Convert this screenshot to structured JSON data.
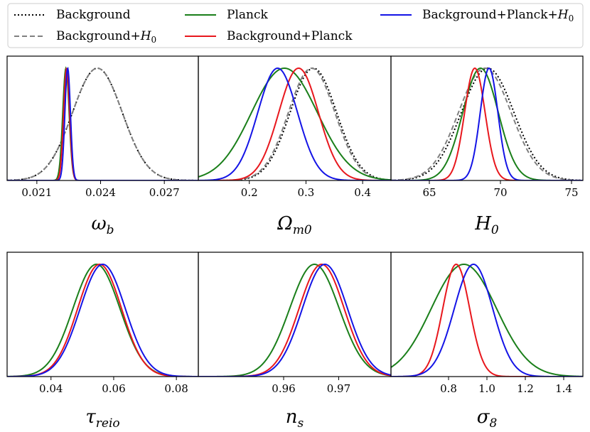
{
  "chart_data": {
    "type": "line",
    "description_kind": "1D marginalized posterior distributions",
    "legend": [
      {
        "label_main": "Background",
        "label_sub": "",
        "color": "#000000",
        "style": "dotted"
      },
      {
        "label_main": "Background+",
        "label_sub": "H",
        "label_sub_index": "0",
        "color": "#808080",
        "style": "dashed"
      },
      {
        "label_main": "Planck",
        "label_sub": "",
        "color": "#1a7f1a",
        "style": "solid"
      },
      {
        "label_main": "Background+Planck",
        "label_sub": "",
        "color": "#e8171d",
        "style": "solid"
      },
      {
        "label_main": "Background+Planck+",
        "label_sub": "H",
        "label_sub_index": "0",
        "color": "#1414e6",
        "style": "solid"
      }
    ],
    "panels": [
      {
        "name": "omega_b",
        "symbol": "ω",
        "subscript": "b",
        "xlim": [
          0.0196,
          0.0286
        ],
        "ticks": [
          {
            "v": 0.021,
            "label": "0.021"
          },
          {
            "v": 0.024,
            "label": "0.024"
          },
          {
            "v": 0.027,
            "label": "0.027"
          }
        ],
        "series": [
          {
            "name": "Background",
            "mean": 0.02385,
            "sigma": 0.00117
          },
          {
            "name": "Background+H0",
            "mean": 0.02385,
            "sigma": 0.00117
          },
          {
            "name": "Planck",
            "mean": 0.02237,
            "sigma": 0.00015
          },
          {
            "name": "Background+Planck",
            "mean": 0.0224,
            "sigma": 0.00014
          },
          {
            "name": "Background+Planck+H0",
            "mean": 0.02245,
            "sigma": 0.00013
          }
        ]
      },
      {
        "name": "Omega_m0",
        "symbol": "Ω",
        "subscript": "m0",
        "xlim": [
          0.11,
          0.45
        ],
        "ticks": [
          {
            "v": 0.2,
            "label": "0.2"
          },
          {
            "v": 0.3,
            "label": "0.3"
          },
          {
            "v": 0.4,
            "label": "0.4"
          }
        ],
        "series": [
          {
            "name": "Background",
            "mean": 0.313,
            "sigma": 0.041
          },
          {
            "name": "Background+H0",
            "mean": 0.31,
            "sigma": 0.041
          },
          {
            "name": "Planck",
            "mean": 0.262,
            "sigma": 0.058
          },
          {
            "name": "Background+Planck",
            "mean": 0.287,
            "sigma": 0.035
          },
          {
            "name": "Background+Planck+H0",
            "mean": 0.25,
            "sigma": 0.035
          }
        ]
      },
      {
        "name": "H0",
        "symbol": "H",
        "subscript": "0",
        "xlim": [
          62.3,
          75.8
        ],
        "ticks": [
          {
            "v": 65,
            "label": "65"
          },
          {
            "v": 70,
            "label": "70"
          },
          {
            "v": 75,
            "label": "75"
          }
        ],
        "series": [
          {
            "name": "Background",
            "mean": 69.1,
            "sigma": 1.85
          },
          {
            "name": "Background+H0",
            "mean": 68.9,
            "sigma": 1.85
          },
          {
            "name": "Planck",
            "mean": 68.6,
            "sigma": 1.25
          },
          {
            "name": "Background+Planck",
            "mean": 68.2,
            "sigma": 0.72
          },
          {
            "name": "Background+Planck+H0",
            "mean": 69.2,
            "sigma": 0.62
          }
        ]
      },
      {
        "name": "tau_reio",
        "symbol": "τ",
        "subscript": "reio",
        "xlim": [
          0.026,
          0.087
        ],
        "ticks": [
          {
            "v": 0.04,
            "label": "0.04"
          },
          {
            "v": 0.06,
            "label": "0.06"
          },
          {
            "v": 0.08,
            "label": "0.08"
          }
        ],
        "series": [
          {
            "name": "Planck",
            "mean": 0.0545,
            "sigma": 0.0075
          },
          {
            "name": "Background+Planck",
            "mean": 0.0555,
            "sigma": 0.007
          },
          {
            "name": "Background+Planck+H0",
            "mean": 0.0565,
            "sigma": 0.0072
          }
        ]
      },
      {
        "name": "n_s",
        "symbol": "n",
        "subscript": "s",
        "xlim": [
          0.9445,
          0.9795
        ],
        "ticks": [
          {
            "v": 0.96,
            "label": "0.96"
          },
          {
            "v": 0.97,
            "label": "0.97"
          }
        ],
        "series": [
          {
            "name": "Planck",
            "mean": 0.9656,
            "sigma": 0.0045
          },
          {
            "name": "Background+Planck",
            "mean": 0.9669,
            "sigma": 0.0041
          },
          {
            "name": "Background+Planck+H0",
            "mean": 0.9675,
            "sigma": 0.0041
          }
        ]
      },
      {
        "name": "sigma_8",
        "symbol": "σ",
        "subscript": "8",
        "xlim": [
          0.5,
          1.5
        ],
        "ticks": [
          {
            "v": 0.8,
            "label": "0.8"
          },
          {
            "v": 1.0,
            "label": "1.0"
          },
          {
            "v": 1.2,
            "label": "1.2"
          },
          {
            "v": 1.4,
            "label": "1.4"
          }
        ],
        "series": [
          {
            "name": "Planck",
            "mean": 0.88,
            "sigma": 0.17
          },
          {
            "name": "Background+Planck",
            "mean": 0.84,
            "sigma": 0.07
          },
          {
            "name": "Background+Planck+H0",
            "mean": 0.93,
            "sigma": 0.1
          }
        ]
      }
    ]
  }
}
